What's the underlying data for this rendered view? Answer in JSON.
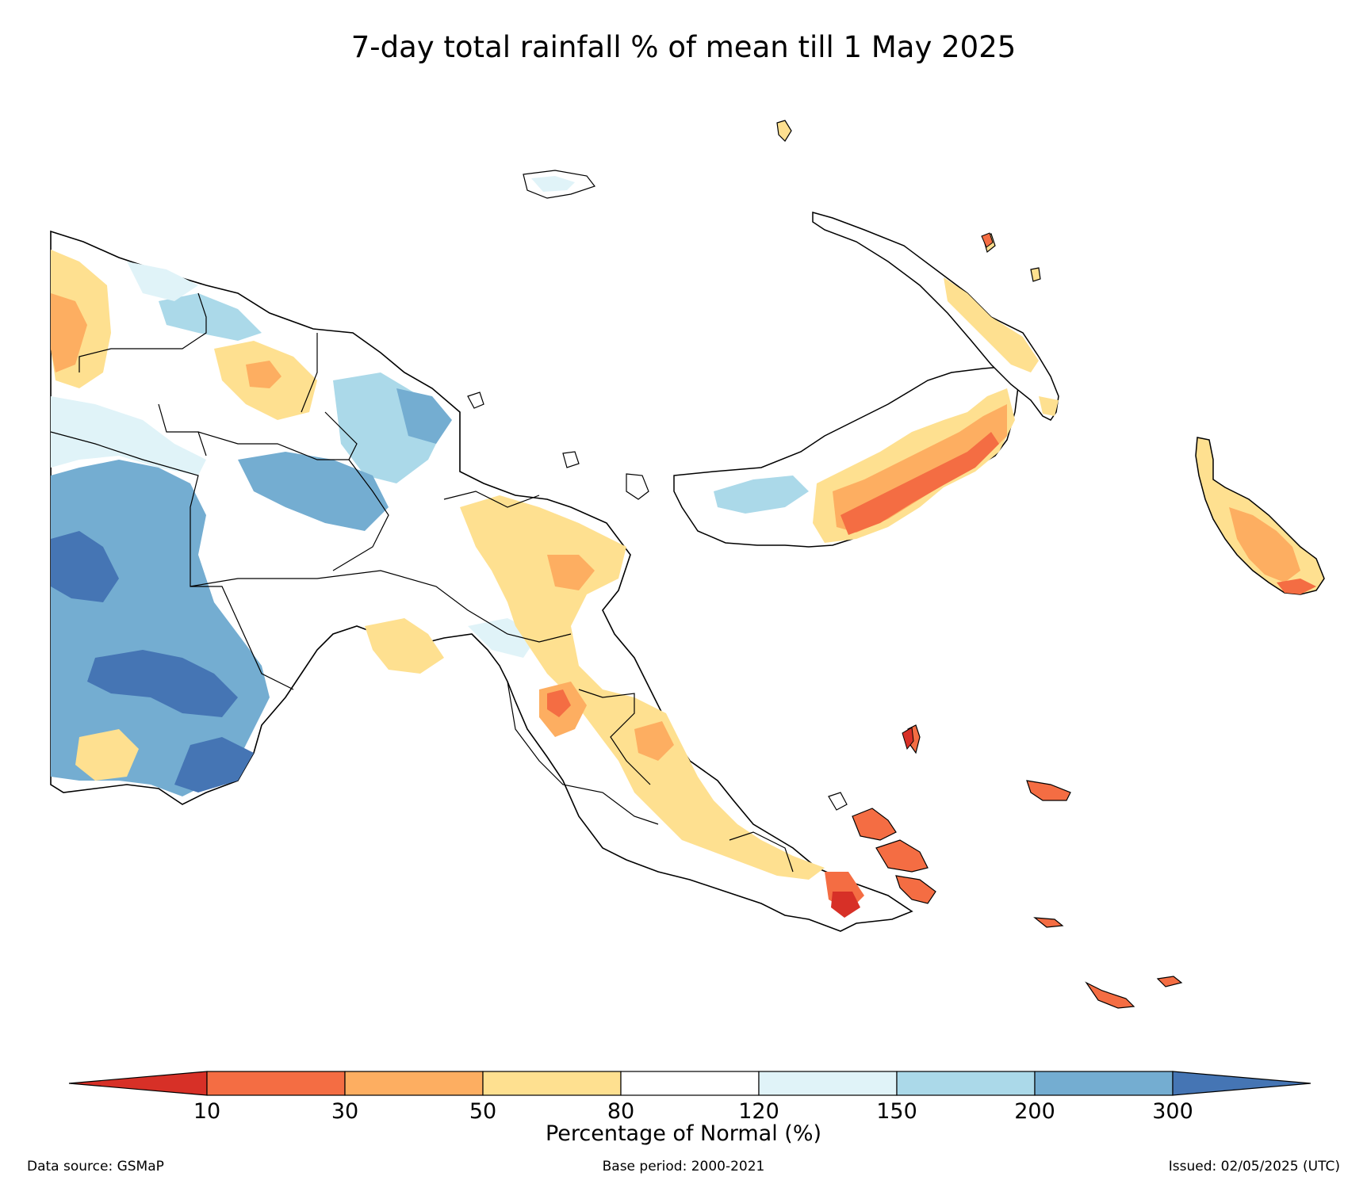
{
  "title": "7-day total rainfall % of mean till 1 May 2025",
  "colorbar": {
    "label": "Percentage of Normal (%)",
    "ticks": [
      "10",
      "30",
      "50",
      "80",
      "120",
      "150",
      "200",
      "300"
    ],
    "colors": {
      "below_10": "#d73027",
      "10_30": "#f46d43",
      "30_50": "#fdae61",
      "50_80": "#fee090",
      "80_120": "#ffffff",
      "120_150": "#e0f3f8",
      "150_200": "#abd9e9",
      "200_300": "#74add1",
      "above_300": "#4575b4"
    }
  },
  "footer": {
    "source": "Data source: GSMaP",
    "base_period": "Base period: 2000-2021",
    "issued": "Issued: 02/05/2025 (UTC)"
  }
}
